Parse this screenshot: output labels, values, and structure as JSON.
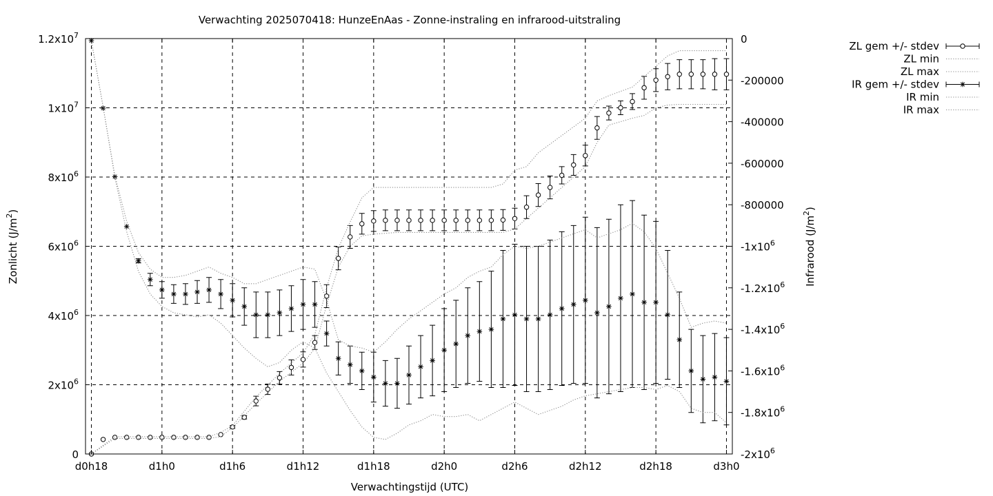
{
  "chart_data": {
    "type": "line",
    "title": "Verwachting 2025070418: HunzeEnAas - Zonne-instraling en infrarood-uitstraling",
    "xlabel": "Verwachtingstijd (UTC)",
    "ylabel": "Zonlicht (J/m²)",
    "y2label": "Infrarood (J/m²)",
    "xlim": [
      -0.5,
      54.5
    ],
    "ylim": [
      0,
      12000000
    ],
    "y2lim": [
      -2000000,
      0
    ],
    "grid": true,
    "legend_position": "outside-top-right",
    "x_ticks": [
      {
        "x": 0,
        "label": "d0h18"
      },
      {
        "x": 6,
        "label": "d1h0"
      },
      {
        "x": 12,
        "label": "d1h6"
      },
      {
        "x": 18,
        "label": "d1h12"
      },
      {
        "x": 24,
        "label": "d1h18"
      },
      {
        "x": 30,
        "label": "d2h0"
      },
      {
        "x": 36,
        "label": "d2h6"
      },
      {
        "x": 42,
        "label": "d2h12"
      },
      {
        "x": 48,
        "label": "d2h18"
      },
      {
        "x": 54,
        "label": "d3h0"
      }
    ],
    "y_ticks": [
      {
        "v": 0,
        "base": "0",
        "exp": ""
      },
      {
        "v": 2000000,
        "base": "2x10",
        "exp": "6"
      },
      {
        "v": 4000000,
        "base": "4x10",
        "exp": "6"
      },
      {
        "v": 6000000,
        "base": "6x10",
        "exp": "6"
      },
      {
        "v": 8000000,
        "base": "8x10",
        "exp": "6"
      },
      {
        "v": 10000000,
        "base": "1x10",
        "exp": "7"
      },
      {
        "v": 12000000,
        "base": "1.2x10",
        "exp": "7"
      }
    ],
    "y2_ticks": [
      {
        "v": 0,
        "base": "0",
        "exp": ""
      },
      {
        "v": -200000,
        "base": "-200000",
        "exp": ""
      },
      {
        "v": -400000,
        "base": "-400000",
        "exp": ""
      },
      {
        "v": -600000,
        "base": "-600000",
        "exp": ""
      },
      {
        "v": -800000,
        "base": "-800000",
        "exp": ""
      },
      {
        "v": -1000000,
        "base": "-1x10",
        "exp": "6"
      },
      {
        "v": -1200000,
        "base": "-1.2x10",
        "exp": "6"
      },
      {
        "v": -1400000,
        "base": "-1.4x10",
        "exp": "6"
      },
      {
        "v": -1600000,
        "base": "-1.6x10",
        "exp": "6"
      },
      {
        "v": -1800000,
        "base": "-1.8x10",
        "exp": "6"
      },
      {
        "v": -2000000,
        "base": "-2x10",
        "exp": "6"
      }
    ],
    "series": [
      {
        "name": "ZL gem +/- stdev",
        "axis": "y1",
        "style": "errorbars",
        "marker": "circle",
        "x": [
          0,
          1,
          2,
          3,
          4,
          5,
          6,
          7,
          8,
          9,
          10,
          11,
          12,
          13,
          14,
          15,
          16,
          17,
          18,
          19,
          20,
          21,
          22,
          23,
          24,
          25,
          26,
          27,
          28,
          29,
          30,
          31,
          32,
          33,
          34,
          35,
          36,
          37,
          38,
          39,
          40,
          41,
          42,
          43,
          44,
          45,
          46,
          47,
          48,
          49,
          50,
          51,
          52,
          53,
          54
        ],
        "y": [
          0,
          420000,
          480000,
          480000,
          480000,
          480000,
          480000,
          480000,
          480000,
          480000,
          480000,
          560000,
          780000,
          1060000,
          1530000,
          1870000,
          2200000,
          2500000,
          2730000,
          3220000,
          4560000,
          5650000,
          6270000,
          6650000,
          6730000,
          6750000,
          6750000,
          6750000,
          6750000,
          6750000,
          6750000,
          6750000,
          6750000,
          6750000,
          6750000,
          6760000,
          6800000,
          7130000,
          7480000,
          7700000,
          8050000,
          8350000,
          8620000,
          9420000,
          9850000,
          10000000,
          10180000,
          10580000,
          10800000,
          10900000,
          10970000,
          10970000,
          10970000,
          10970000,
          10970000
        ],
        "err": [
          0,
          0,
          0,
          0,
          0,
          0,
          0,
          0,
          0,
          0,
          0,
          0,
          40000,
          50000,
          140000,
          150000,
          180000,
          220000,
          220000,
          200000,
          330000,
          330000,
          330000,
          300000,
          300000,
          300000,
          300000,
          300000,
          300000,
          300000,
          300000,
          300000,
          300000,
          300000,
          300000,
          300000,
          300000,
          330000,
          330000,
          330000,
          250000,
          300000,
          300000,
          330000,
          200000,
          200000,
          230000,
          330000,
          330000,
          380000,
          420000,
          420000,
          420000,
          450000,
          450000
        ]
      },
      {
        "name": "ZL min",
        "axis": "y1",
        "style": "dotted",
        "x": [
          0,
          2,
          4,
          6,
          8,
          10,
          11,
          12,
          14,
          16,
          18,
          19,
          20,
          21,
          22,
          23,
          24,
          26,
          28,
          30,
          32,
          34,
          35,
          36,
          37,
          38,
          40,
          42,
          43,
          44,
          46,
          47,
          48,
          49,
          50,
          51,
          52,
          53,
          54
        ],
        "y": [
          0,
          450000,
          450000,
          450000,
          450000,
          450000,
          500000,
          760000,
          1450000,
          2100000,
          2620000,
          3050000,
          4300000,
          5400000,
          6000000,
          6300000,
          6350000,
          6400000,
          6400000,
          6400000,
          6400000,
          6400000,
          6400000,
          6500000,
          6800000,
          7100000,
          7700000,
          8300000,
          9000000,
          9500000,
          9700000,
          9780000,
          10000000,
          10080000,
          10100000,
          10100000,
          10100000,
          10100000,
          10100000
        ]
      },
      {
        "name": "ZL max",
        "axis": "y1",
        "style": "dotted",
        "x": [
          0,
          2,
          4,
          6,
          8,
          10,
          11,
          12,
          14,
          16,
          18,
          19,
          20,
          21,
          22,
          23,
          24,
          26,
          28,
          30,
          32,
          34,
          35,
          36,
          37,
          38,
          40,
          42,
          43,
          44,
          46,
          47,
          48,
          49,
          50,
          51,
          52,
          53,
          54
        ],
        "y": [
          0,
          500000,
          500000,
          500000,
          500000,
          500000,
          620000,
          820000,
          1650000,
          2330000,
          2920000,
          3450000,
          4800000,
          5950000,
          6700000,
          7400000,
          7700000,
          7700000,
          7700000,
          7700000,
          7700000,
          7700000,
          7800000,
          8200000,
          8300000,
          8700000,
          9200000,
          9700000,
          10200000,
          10350000,
          10600000,
          10900000,
          11200000,
          11500000,
          11650000,
          11650000,
          11650000,
          11650000,
          11650000
        ]
      },
      {
        "name": "IR gem +/- stdev",
        "axis": "y2",
        "style": "errorbars",
        "marker": "star",
        "x": [
          0,
          1,
          2,
          3,
          4,
          5,
          6,
          7,
          8,
          9,
          10,
          11,
          12,
          13,
          14,
          15,
          16,
          17,
          18,
          19,
          20,
          21,
          22,
          23,
          24,
          25,
          26,
          27,
          28,
          29,
          30,
          31,
          32,
          33,
          34,
          35,
          36,
          37,
          38,
          39,
          40,
          41,
          42,
          43,
          44,
          45,
          46,
          47,
          48,
          49,
          50,
          51,
          52,
          53,
          54
        ],
        "y": [
          -10000,
          -335000,
          -665000,
          -905000,
          -1070000,
          -1160000,
          -1210000,
          -1230000,
          -1230000,
          -1220000,
          -1210000,
          -1230000,
          -1260000,
          -1290000,
          -1330000,
          -1330000,
          -1320000,
          -1300000,
          -1280000,
          -1280000,
          -1420000,
          -1540000,
          -1570000,
          -1600000,
          -1630000,
          -1660000,
          -1660000,
          -1620000,
          -1580000,
          -1550000,
          -1500000,
          -1470000,
          -1430000,
          -1410000,
          -1400000,
          -1350000,
          -1330000,
          -1350000,
          -1350000,
          -1330000,
          -1300000,
          -1280000,
          -1260000,
          -1320000,
          -1290000,
          -1250000,
          -1230000,
          -1270000,
          -1270000,
          -1330000,
          -1450000,
          -1600000,
          -1640000,
          -1630000,
          -1650000
        ],
        "err": [
          0,
          0,
          0,
          0,
          10000,
          30000,
          40000,
          45000,
          50000,
          55000,
          60000,
          70000,
          80000,
          90000,
          110000,
          110000,
          110000,
          110000,
          120000,
          110000,
          60000,
          80000,
          90000,
          90000,
          120000,
          110000,
          120000,
          140000,
          150000,
          170000,
          200000,
          210000,
          230000,
          240000,
          280000,
          330000,
          340000,
          350000,
          350000,
          360000,
          370000,
          380000,
          400000,
          410000,
          420000,
          450000,
          450000,
          420000,
          390000,
          310000,
          230000,
          200000,
          210000,
          210000,
          210000
        ]
      },
      {
        "name": "IR min",
        "axis": "y2",
        "style": "dotted",
        "x": [
          0,
          1,
          2,
          3,
          4,
          5,
          6,
          7,
          8,
          9,
          10,
          11,
          12,
          13,
          14,
          15,
          16,
          17,
          18,
          19,
          20,
          21,
          22,
          23,
          24,
          25,
          26,
          27,
          28,
          29,
          30,
          31,
          32,
          33,
          34,
          35,
          36,
          37,
          38,
          39,
          40,
          41,
          42,
          43,
          44,
          45,
          46,
          47,
          48,
          49,
          50,
          51,
          52,
          53,
          54
        ],
        "y": [
          -10000,
          -330000,
          -670000,
          -930000,
          -1120000,
          -1230000,
          -1290000,
          -1320000,
          -1330000,
          -1340000,
          -1330000,
          -1370000,
          -1430000,
          -1490000,
          -1540000,
          -1580000,
          -1560000,
          -1500000,
          -1460000,
          -1490000,
          -1610000,
          -1700000,
          -1790000,
          -1870000,
          -1920000,
          -1930000,
          -1900000,
          -1860000,
          -1840000,
          -1810000,
          -1820000,
          -1820000,
          -1810000,
          -1840000,
          -1810000,
          -1780000,
          -1750000,
          -1780000,
          -1810000,
          -1790000,
          -1770000,
          -1740000,
          -1720000,
          -1710000,
          -1700000,
          -1690000,
          -1680000,
          -1680000,
          -1690000,
          -1670000,
          -1700000,
          -1780000,
          -1800000,
          -1800000,
          -1850000
        ]
      },
      {
        "name": "IR max",
        "axis": "y2",
        "style": "dotted",
        "x": [
          0,
          1,
          2,
          3,
          4,
          5,
          6,
          7,
          8,
          9,
          10,
          11,
          12,
          13,
          14,
          15,
          16,
          17,
          18,
          19,
          20,
          21,
          22,
          23,
          24,
          25,
          26,
          27,
          28,
          29,
          30,
          31,
          32,
          33,
          34,
          35,
          36,
          37,
          38,
          39,
          40,
          41,
          42,
          43,
          44,
          45,
          46,
          47,
          48,
          49,
          50,
          51,
          52,
          53,
          54
        ],
        "y": [
          -10000,
          -330000,
          -660000,
          -880000,
          -1030000,
          -1110000,
          -1150000,
          -1150000,
          -1140000,
          -1120000,
          -1100000,
          -1130000,
          -1150000,
          -1180000,
          -1180000,
          -1160000,
          -1140000,
          -1120000,
          -1100000,
          -1110000,
          -1260000,
          -1450000,
          -1480000,
          -1490000,
          -1510000,
          -1460000,
          -1400000,
          -1350000,
          -1310000,
          -1270000,
          -1230000,
          -1200000,
          -1150000,
          -1120000,
          -1100000,
          -1040000,
          -1000000,
          -1010000,
          -1000000,
          -980000,
          -960000,
          -940000,
          -920000,
          -960000,
          -940000,
          -920000,
          -890000,
          -930000,
          -1010000,
          -1130000,
          -1250000,
          -1390000,
          -1370000,
          -1360000,
          -1370000
        ]
      }
    ]
  }
}
